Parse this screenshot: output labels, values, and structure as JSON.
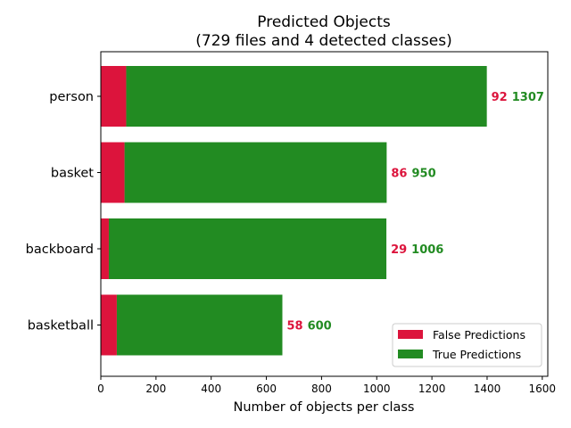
{
  "chart_data": {
    "type": "bar",
    "orientation": "horizontal",
    "stacked": true,
    "title_line1": "Predicted Objects",
    "title_line2": "(729 files and 4 detected classes)",
    "xlabel": "Number of objects per class",
    "ylabel": "",
    "categories": [
      "person",
      "basket",
      "backboard",
      "basketball"
    ],
    "series": [
      {
        "name": "False Predictions",
        "color": "#dc143c",
        "values": [
          92,
          86,
          29,
          58
        ]
      },
      {
        "name": "True Predictions",
        "color": "#228b22",
        "values": [
          1307,
          950,
          1006,
          600
        ]
      }
    ],
    "xlim": [
      0,
      1620
    ],
    "xticks": [
      0,
      200,
      400,
      600,
      800,
      1000,
      1200,
      1400,
      1600
    ],
    "grid": false,
    "legend_position": "lower right"
  }
}
